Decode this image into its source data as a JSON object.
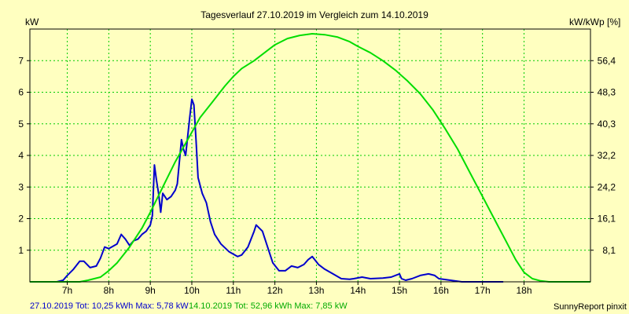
{
  "chart_data": {
    "type": "line",
    "title": "Tagesverlauf 27.10.2019 im Vergleich zum 14.10.2019",
    "ylabel_left": "kW",
    "ylabel_right": "kW/kWp [%]",
    "x_ticks": [
      "7h",
      "8h",
      "9h",
      "10h",
      "11h",
      "12h",
      "13h",
      "14h",
      "15h",
      "16h",
      "17h",
      "18h"
    ],
    "xlim": [
      6.1,
      19.6
    ],
    "ylim": [
      0,
      8
    ],
    "y_ticks_left": [
      "1",
      "2",
      "3",
      "4",
      "5",
      "6",
      "7"
    ],
    "y_ticks_right": [
      "8,1",
      "16,1",
      "24,2",
      "32,2",
      "40,3",
      "48,3",
      "56,4"
    ],
    "grid": true,
    "series": [
      {
        "name": "27.10.2019",
        "color": "#0000cc",
        "x": [
          6.1,
          6.75,
          6.9,
          7.0,
          7.15,
          7.3,
          7.4,
          7.55,
          7.7,
          7.8,
          7.9,
          8.0,
          8.2,
          8.3,
          8.4,
          8.5,
          8.6,
          8.7,
          8.8,
          8.9,
          8.95,
          9.0,
          9.05,
          9.1,
          9.15,
          9.2,
          9.25,
          9.3,
          9.4,
          9.5,
          9.6,
          9.65,
          9.75,
          9.8,
          9.85,
          9.9,
          9.95,
          10.0,
          10.05,
          10.1,
          10.15,
          10.25,
          10.35,
          10.45,
          10.55,
          10.7,
          10.9,
          11.1,
          11.2,
          11.35,
          11.5,
          11.55,
          11.7,
          11.85,
          11.95,
          12.1,
          12.25,
          12.4,
          12.55,
          12.7,
          12.8,
          12.9,
          13.05,
          13.2,
          13.4,
          13.6,
          13.8,
          13.9,
          14.1,
          14.3,
          14.6,
          14.8,
          14.9,
          15.0,
          15.05,
          15.15,
          15.3,
          15.5,
          15.7,
          15.85,
          15.95,
          16.5,
          17.0,
          17.5
        ],
        "values": [
          0,
          0,
          0.05,
          0.2,
          0.4,
          0.65,
          0.65,
          0.45,
          0.5,
          0.75,
          1.1,
          1.05,
          1.2,
          1.5,
          1.35,
          1.15,
          1.3,
          1.35,
          1.5,
          1.6,
          1.7,
          1.8,
          2.1,
          3.7,
          3.2,
          2.8,
          2.2,
          2.8,
          2.6,
          2.7,
          2.9,
          3.1,
          4.5,
          4.2,
          4.0,
          4.6,
          5.2,
          5.78,
          5.6,
          4.5,
          3.3,
          2.8,
          2.5,
          1.9,
          1.5,
          1.2,
          0.95,
          0.8,
          0.85,
          1.1,
          1.6,
          1.8,
          1.6,
          1.0,
          0.6,
          0.35,
          0.35,
          0.5,
          0.45,
          0.55,
          0.7,
          0.8,
          0.55,
          0.4,
          0.25,
          0.1,
          0.08,
          0.1,
          0.15,
          0.1,
          0.12,
          0.15,
          0.2,
          0.25,
          0.1,
          0.05,
          0.1,
          0.2,
          0.25,
          0.2,
          0.1,
          0,
          0,
          0
        ]
      },
      {
        "name": "14.10.2019",
        "color": "#00dd00",
        "x": [
          6.1,
          7.3,
          7.5,
          7.8,
          8.0,
          8.2,
          8.5,
          8.8,
          9.0,
          9.3,
          9.6,
          9.9,
          10.2,
          10.5,
          10.8,
          11.0,
          11.2,
          11.5,
          11.8,
          12.0,
          12.3,
          12.6,
          12.9,
          13.2,
          13.5,
          13.8,
          14.0,
          14.3,
          14.6,
          14.9,
          15.2,
          15.5,
          15.8,
          16.1,
          16.4,
          16.7,
          17.0,
          17.3,
          17.6,
          17.8,
          18.0,
          18.2,
          18.4,
          18.6,
          18.8,
          19.6
        ],
        "values": [
          0,
          0,
          0.05,
          0.15,
          0.35,
          0.6,
          1.1,
          1.7,
          2.2,
          3.0,
          3.8,
          4.5,
          5.2,
          5.7,
          6.2,
          6.5,
          6.75,
          7.0,
          7.3,
          7.5,
          7.7,
          7.8,
          7.85,
          7.82,
          7.75,
          7.6,
          7.45,
          7.25,
          7.0,
          6.7,
          6.35,
          5.95,
          5.45,
          4.85,
          4.2,
          3.45,
          2.7,
          1.95,
          1.2,
          0.7,
          0.3,
          0.1,
          0.03,
          0,
          0,
          0
        ]
      }
    ]
  },
  "footer": {
    "series1_text": "27.10.2019 Tot: 10,25 kWh Max: 5,78 kW",
    "series2_text": "14.10.2019 Tot: 52,96 kWh Max: 7,85 kW",
    "credit": "SunnyReport pinxit"
  }
}
